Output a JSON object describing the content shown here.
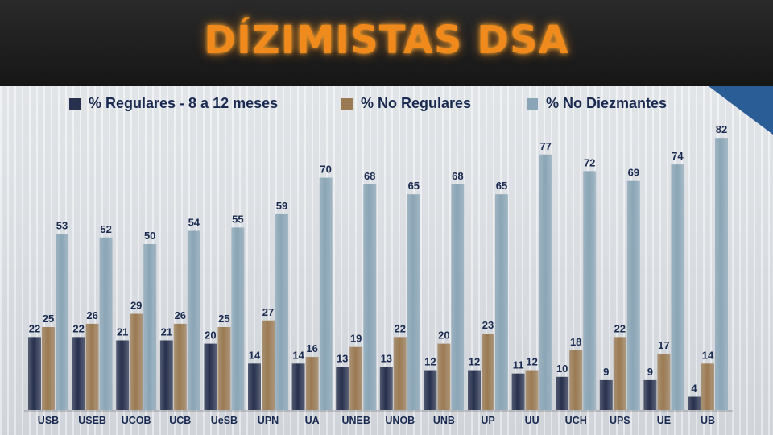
{
  "title": "DÍZIMISTAS DSA",
  "colors": {
    "regulares": "#27304d",
    "no_regulares": "#9a7a52",
    "no_diezmantes": "#8aa5b6"
  },
  "chart_data": {
    "type": "bar",
    "categories": [
      "USB",
      "USEB",
      "UCOB",
      "UCB",
      "UeSB",
      "UPN",
      "UA",
      "UNEB",
      "UNOB",
      "UNB",
      "UP",
      "UU",
      "UCH",
      "UPS",
      "UE",
      "UB"
    ],
    "series": [
      {
        "name": "% Regulares - 8 a 12 meses",
        "values": [
          22,
          22,
          21,
          21,
          20,
          14,
          14,
          13,
          13,
          12,
          12,
          11,
          10,
          9,
          9,
          4
        ]
      },
      {
        "name": "% No Regulares",
        "values": [
          25,
          26,
          29,
          26,
          25,
          27,
          16,
          19,
          22,
          20,
          23,
          12,
          18,
          22,
          17,
          14
        ]
      },
      {
        "name": "% No Diezmantes",
        "values": [
          53,
          52,
          50,
          54,
          55,
          59,
          70,
          68,
          65,
          68,
          65,
          77,
          72,
          69,
          74,
          82
        ]
      }
    ],
    "ylim": [
      0,
      85
    ],
    "legend": "top",
    "grid": false
  }
}
